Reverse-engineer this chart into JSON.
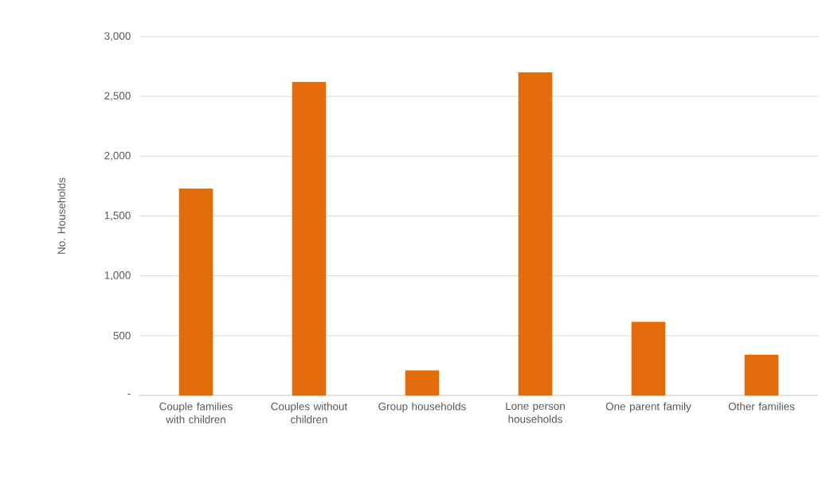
{
  "chart_data": {
    "type": "bar",
    "ylabel": "No. Households",
    "categories": [
      "Couple families with children",
      "Couples without children",
      "Group households",
      "Lone person households",
      "One parent family",
      "Other families"
    ],
    "values": [
      1730,
      2620,
      210,
      2700,
      615,
      340
    ],
    "color": "#e36c0a",
    "ylim": [
      0,
      3000
    ],
    "yticks": [
      {
        "value": 0,
        "label": "-"
      },
      {
        "value": 500,
        "label": "500"
      },
      {
        "value": 1000,
        "label": "1,000"
      },
      {
        "value": 1500,
        "label": "1,500"
      },
      {
        "value": 2000,
        "label": "2,000"
      },
      {
        "value": 2500,
        "label": "2,500"
      },
      {
        "value": 3000,
        "label": "3,000"
      }
    ],
    "grid": "y"
  }
}
